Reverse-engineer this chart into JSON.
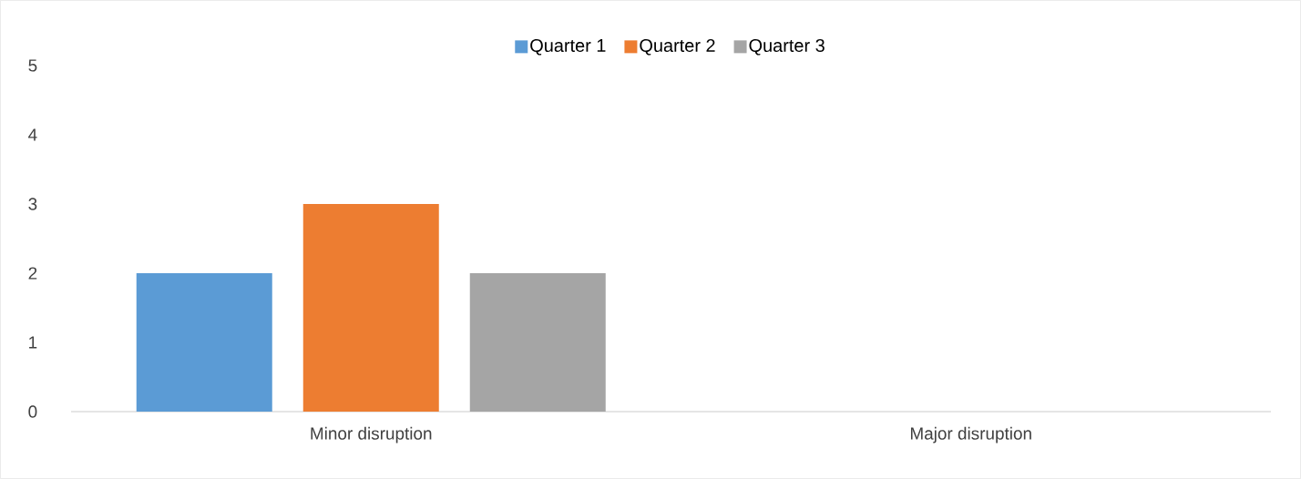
{
  "chart_data": {
    "type": "bar",
    "categories": [
      "Minor disruption",
      "Major disruption"
    ],
    "series": [
      {
        "name": "Quarter 1",
        "color": "#5b9bd5",
        "values": [
          2,
          0
        ]
      },
      {
        "name": "Quarter 2",
        "color": "#ed7d31",
        "values": [
          3,
          0
        ]
      },
      {
        "name": "Quarter 3",
        "color": "#a5a5a5",
        "values": [
          2,
          0
        ]
      }
    ],
    "ylim": [
      0,
      5
    ],
    "yticks": [
      0,
      1,
      2,
      3,
      4,
      5
    ],
    "grid": false,
    "legend": "top"
  }
}
